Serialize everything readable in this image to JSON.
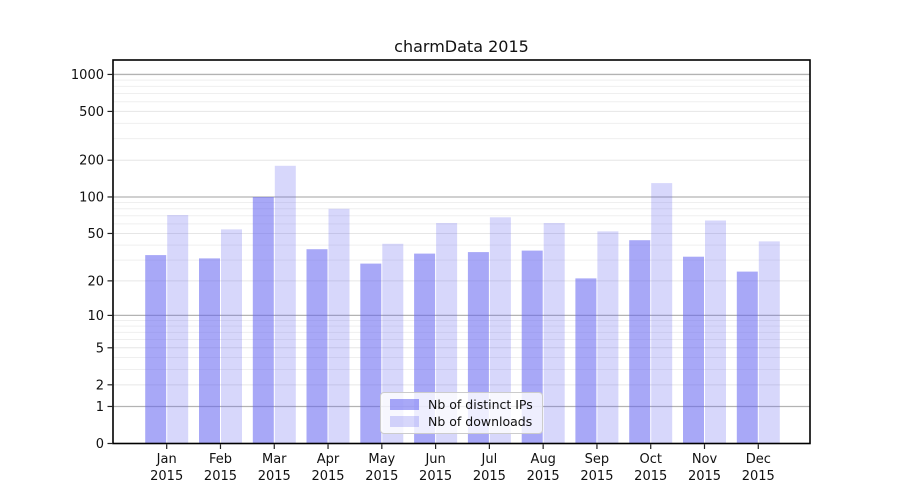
{
  "title": "charmData 2015",
  "chart_data": {
    "type": "bar",
    "title": "charmData 2015",
    "categories": [
      "Jan 2015",
      "Feb 2015",
      "Mar 2015",
      "Apr 2015",
      "May 2015",
      "Jun 2015",
      "Jul 2015",
      "Aug 2015",
      "Sep 2015",
      "Oct 2015",
      "Nov 2015",
      "Dec 2015"
    ],
    "x_axis": {
      "months": [
        "Jan",
        "Feb",
        "Mar",
        "Apr",
        "May",
        "Jun",
        "Jul",
        "Aug",
        "Sep",
        "Oct",
        "Nov",
        "Dec"
      ],
      "year": "2015"
    },
    "series": [
      {
        "name": "Nb of distinct IPs",
        "color": "rgba(97,97,240,0.55)",
        "values": [
          33,
          31,
          100,
          37,
          28,
          34,
          35,
          36,
          21,
          44,
          32,
          24
        ]
      },
      {
        "name": "Nb of downloads",
        "color": "rgba(97,97,240,0.25)",
        "values": [
          71,
          54,
          180,
          80,
          41,
          61,
          68,
          61,
          52,
          130,
          64,
          43
        ]
      }
    ],
    "y_axis": {
      "scale": "log10(value+1)",
      "tick_labels": [
        "0",
        "1",
        "2",
        "5",
        "10",
        "20",
        "50",
        "100",
        "200",
        "500",
        "1000"
      ],
      "tick_values": [
        0,
        1,
        2,
        5,
        10,
        20,
        50,
        100,
        200,
        500,
        1000
      ],
      "minor_tick_values": [
        3,
        4,
        6,
        7,
        8,
        9,
        30,
        40,
        60,
        70,
        80,
        90,
        300,
        400,
        600,
        700,
        800,
        900
      ],
      "decade_values": [
        1,
        10,
        100,
        1000
      ],
      "range": [
        0,
        1312
      ]
    },
    "grid": true,
    "legend_position": "lower center"
  },
  "colors": {
    "bar_base": "#6161f0",
    "grid_decade": "#b3b3b3",
    "grid_light": "#e6e6e6",
    "grid_minor": "#efefef",
    "spine": "#000000",
    "text": "#111111",
    "legend_border": "#cccccc"
  }
}
